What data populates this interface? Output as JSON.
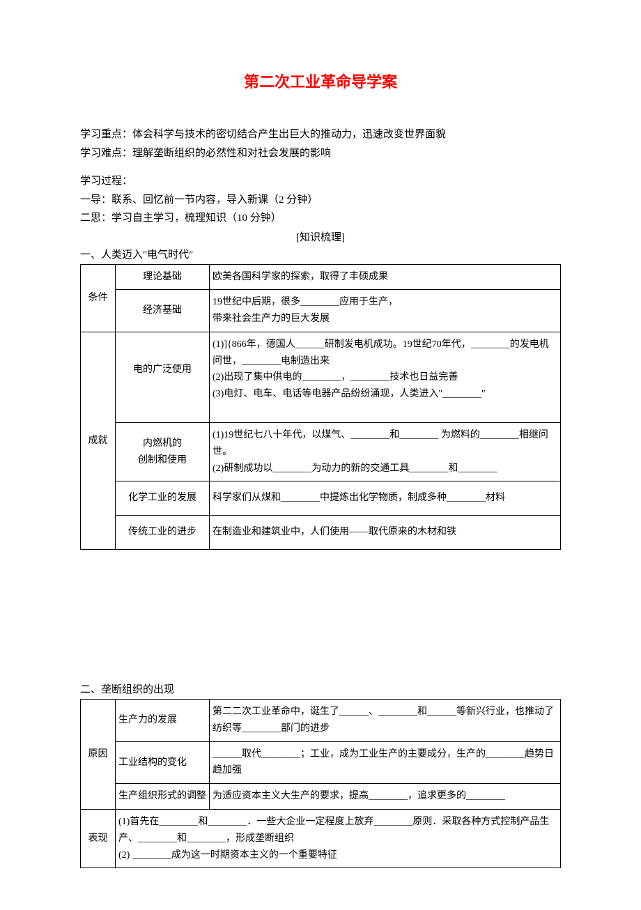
{
  "title": "第二次工业革命导学案",
  "intro": {
    "focus": "学习重点：体会科学与技术的密切结合产生出巨大的推动力，迅速改变世界面貌",
    "difficulty": "学习难点：理解垄断组织的必然性和对社会发展的影响",
    "process_label": "学习过程：",
    "step1": "一导：联系、回忆前一节内容，导入新课（2 分钟）",
    "step2": "二思：学习自主学习，梳理知识（10 分钟）",
    "knowledge_label": "[知识梳理]"
  },
  "section1": {
    "heading": "一、人类迈入\"电气时代\"",
    "row_labels": {
      "conditions": "条件",
      "achievements": "成就"
    },
    "rows": {
      "r1": {
        "sub": "理论基础",
        "content": "欧美各国科学家的探索，取得了丰硕成果"
      },
      "r2": {
        "sub": "经济基础",
        "content": "19世纪中后期，很多________应用于生产，\n带来社会生产力的巨大发展"
      },
      "r3": {
        "sub": "电的广泛使用",
        "content": "(1)]{866年，德国人______研制发电机成功。19世纪70年代，________的发电机问世，________电制造出来\n(2)出现了集中供电的________，________技术也日益完善\n(3)电灯、电车、电话等电器产品纷纷涌现，人类进入\"________\""
      },
      "r4": {
        "sub": "内燃机的\n创制和使用",
        "content": "(1)19世纪七八十年代，以煤气、________和________  为燃料的________相继问世。\n(2)研制成功以________为动力的新的交通工具________和________"
      },
      "r5": {
        "sub": "化学工业的发展",
        "content": "科学家们从煤和________中提炼出化学物质，制成多种________材料"
      },
      "r6": {
        "sub": "传统工业的进步",
        "content": "在制造业和建筑业中，人们使用——取代原来的木材和铁"
      }
    }
  },
  "section2": {
    "heading": "二、垄断组织的出现",
    "row_labels": {
      "reasons": "原因",
      "manifest": "表现"
    },
    "rows": {
      "r1": {
        "sub": "生产力的发展",
        "content": "第二二次工业革命中，诞生了______、________和______等新兴行业，也推动了纺织等________部门的进步"
      },
      "r2": {
        "sub": "工业结构的变化",
        "content": "______取代________；工业，成为工业生产的主要成分，生产的________趋势日趋加强"
      },
      "r3": {
        "sub": "生产组织形式的调整",
        "content": "为适应资本主义大生产的要求，提高________，追求更多的________"
      },
      "r4": {
        "content": "(1)首先在________和________．一些大企业一定程度上放弃________原则．采取各种方式控制产品生产、________和________，形成垄断组织\n(2) ________成为这一时期资本主义的一个重要特征"
      }
    }
  }
}
